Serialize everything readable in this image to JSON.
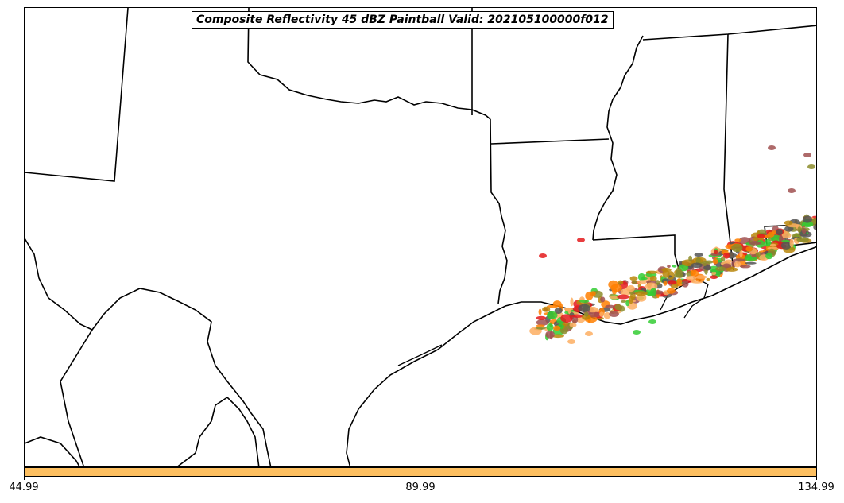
{
  "title": "Composite Reflectivity 45 dBZ Paintball Valid: 202105100000f012",
  "colorbar": {
    "color": "#fdbf60",
    "ticks": [
      "44.99",
      "89.99",
      "134.99"
    ]
  },
  "paint_colors": [
    "#e41a1c",
    "#ff7f00",
    "#33cc33",
    "#b8860b",
    "#555555",
    "#a05050",
    "#fdae61",
    "#8c8c2a"
  ]
}
